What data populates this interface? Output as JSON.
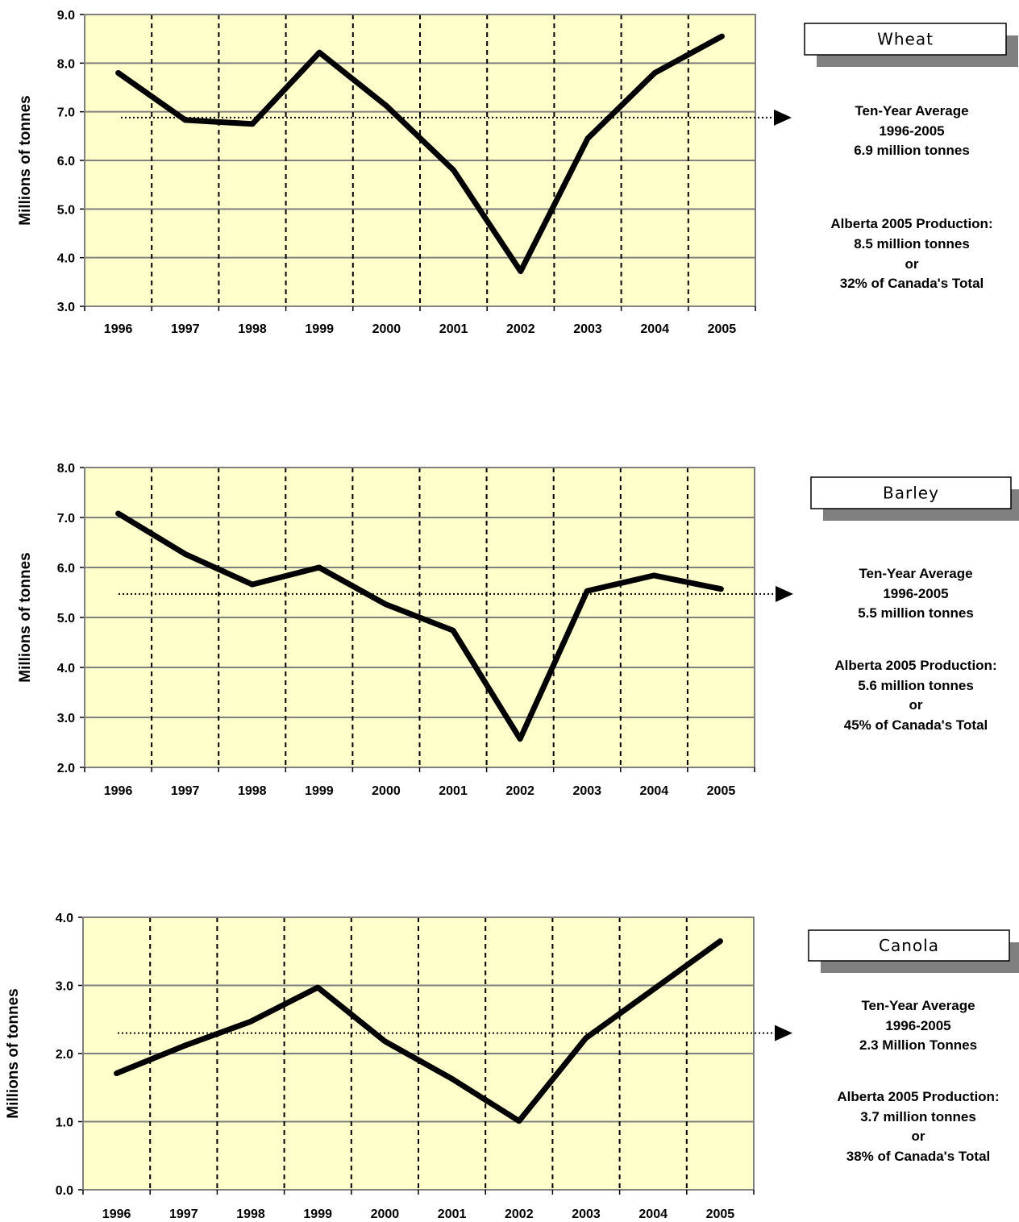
{
  "chart_data": [
    {
      "type": "line",
      "title": "Wheat",
      "ylabel": "Millions of tonnes",
      "xlabel": "",
      "categories": [
        "1996",
        "1997",
        "1998",
        "1999",
        "2000",
        "2001",
        "2002",
        "2003",
        "2004",
        "2005"
      ],
      "values": [
        7.8,
        6.83,
        6.75,
        8.22,
        7.12,
        5.8,
        3.72,
        6.45,
        7.8,
        8.55
      ],
      "ylim": [
        3.0,
        9.0
      ],
      "yticks": [
        "3.0",
        "4.0",
        "5.0",
        "6.0",
        "7.0",
        "8.0",
        "9.0"
      ],
      "average": 6.88,
      "grid": "horizontal solid, vertical dashed",
      "notes": [
        [
          "Ten-Year Average",
          "1996-2005",
          "6.9 million tonnes"
        ],
        [
          "Alberta 2005 Production:",
          "8.5 million tonnes",
          "or",
          "32% of Canada's Total"
        ]
      ]
    },
    {
      "type": "line",
      "title": "Barley",
      "ylabel": "Millions of tonnes",
      "xlabel": "",
      "categories": [
        "1996",
        "1997",
        "1998",
        "1999",
        "2000",
        "2001",
        "2002",
        "2003",
        "2004",
        "2005"
      ],
      "values": [
        7.08,
        6.27,
        5.66,
        6.0,
        5.26,
        4.74,
        2.57,
        5.53,
        5.84,
        5.57
      ],
      "ylim": [
        2.0,
        8.0
      ],
      "yticks": [
        "2.0",
        "3.0",
        "4.0",
        "5.0",
        "6.0",
        "7.0",
        "8.0"
      ],
      "average": 5.47,
      "grid": "horizontal solid, vertical dashed",
      "notes": [
        [
          "Ten-Year Average",
          "1996-2005",
          "5.5 million tonnes"
        ],
        [
          "Alberta 2005 Production:",
          "5.6 million tonnes",
          "or",
          "45% of Canada's Total"
        ]
      ]
    },
    {
      "type": "line",
      "title": "Canola",
      "ylabel": "Millions of tonnes",
      "xlabel": "",
      "categories": [
        "1996",
        "1997",
        "1998",
        "1999",
        "2000",
        "2001",
        "2002",
        "2003",
        "2004",
        "2005"
      ],
      "values": [
        1.71,
        2.11,
        2.47,
        2.97,
        2.18,
        1.63,
        1.01,
        2.23,
        2.94,
        3.65
      ],
      "ylim": [
        0.0,
        4.0
      ],
      "yticks": [
        "0.0",
        "1.0",
        "2.0",
        "3.0",
        "4.0"
      ],
      "average": 2.3,
      "grid": "horizontal solid, vertical dashed",
      "notes": [
        [
          "Ten-Year Average",
          "1996-2005",
          "2.3 Million Tonnes"
        ],
        [
          "Alberta 2005 Production:",
          "3.7 million tonnes",
          "or",
          "38% of Canada's Total"
        ]
      ]
    }
  ],
  "colors": {
    "plot_bg": "#FFFFCC",
    "line": "#000000",
    "grid": "#808080",
    "shadow": "#808080"
  }
}
